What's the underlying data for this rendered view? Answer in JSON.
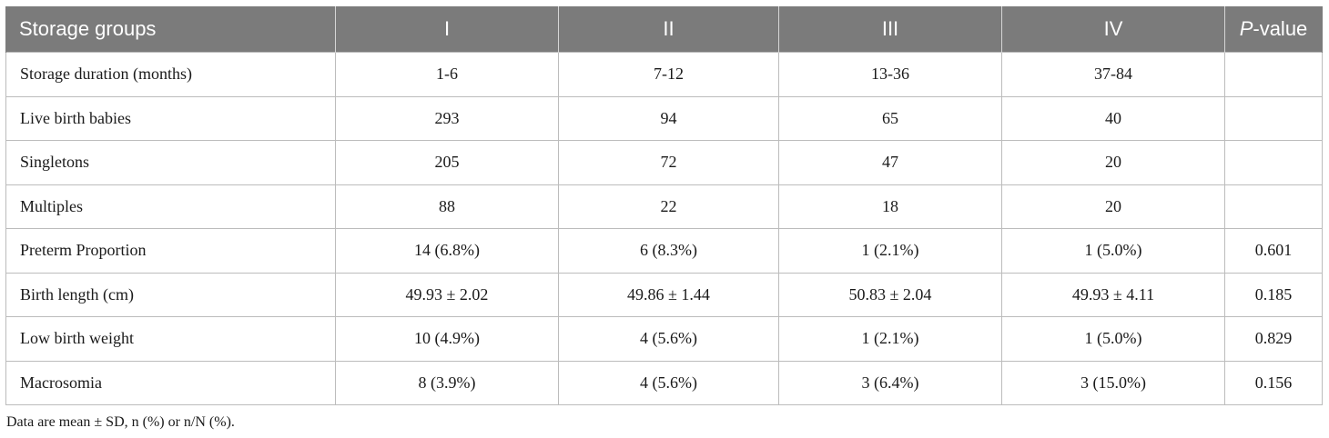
{
  "table": {
    "header": {
      "group_label": "Storage groups",
      "groups": [
        "I",
        "II",
        "III",
        "IV"
      ],
      "pvalue_prefix": "P",
      "pvalue_suffix": "-value"
    },
    "rows": [
      {
        "label": "Storage duration (months)",
        "values": [
          "1-6",
          "7-12",
          "13-36",
          "37-84"
        ],
        "pvalue": ""
      },
      {
        "label": "Live birth babies",
        "values": [
          "293",
          "94",
          "65",
          "40"
        ],
        "pvalue": ""
      },
      {
        "label": "Singletons",
        "values": [
          "205",
          "72",
          "47",
          "20"
        ],
        "pvalue": ""
      },
      {
        "label": "Multiples",
        "values": [
          "88",
          "22",
          "18",
          "20"
        ],
        "pvalue": ""
      },
      {
        "label": "Preterm Proportion",
        "values": [
          "14 (6.8%)",
          "6 (8.3%)",
          "1 (2.1%)",
          "1 (5.0%)"
        ],
        "pvalue": "0.601"
      },
      {
        "label": "Birth length (cm)",
        "values": [
          "49.93 ± 2.02",
          "49.86 ± 1.44",
          "50.83 ± 2.04",
          "49.93 ± 4.11"
        ],
        "pvalue": "0.185"
      },
      {
        "label": "Low birth weight",
        "values": [
          "10 (4.9%)",
          "4 (5.6%)",
          "1 (2.1%)",
          "1 (5.0%)"
        ],
        "pvalue": "0.829"
      },
      {
        "label": "Macrosomia",
        "values": [
          "8 (3.9%)",
          "4 (5.6%)",
          "3 (6.4%)",
          "3 (15.0%)"
        ],
        "pvalue": "0.156"
      }
    ]
  },
  "footnote": "Data are mean ± SD, n (%) or n/N (%).",
  "colors": {
    "header_bg": "#7b7b7b",
    "header_text": "#ffffff",
    "grid": "#bcbcbc"
  }
}
